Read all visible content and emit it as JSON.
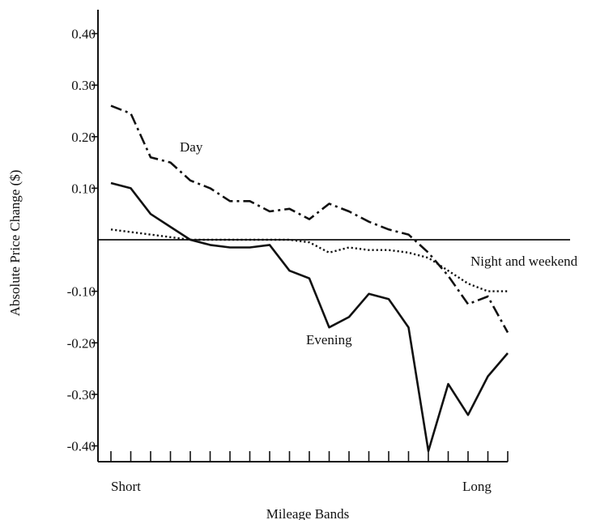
{
  "chart_data": {
    "type": "line",
    "title": "",
    "xlabel": "Mileage Bands",
    "ylabel": "Absolute Price Change ($)",
    "ylim": [
      -0.44,
      0.45
    ],
    "yticks": [
      0.4,
      0.3,
      0.2,
      0.1,
      -0.1,
      -0.2,
      -0.3,
      -0.4
    ],
    "ytick_labels": [
      "0.40",
      "0.30",
      "0.20",
      "0.10",
      "-0.10",
      "-0.20",
      "-0.30",
      "-0.40"
    ],
    "x_band_count": 20,
    "x_end_labels": {
      "start": "Short",
      "end": "Long"
    },
    "grid": false,
    "legend": "none (series labeled inline)",
    "series": [
      {
        "name": "Day",
        "style": "dash-dot",
        "x": [
          0,
          1,
          2,
          3,
          4,
          5,
          6,
          7,
          8,
          9,
          10,
          11,
          12,
          13,
          14,
          15,
          16,
          17,
          18,
          19,
          20
        ],
        "y": [
          0.26,
          0.245,
          0.16,
          0.15,
          0.115,
          0.1,
          0.075,
          0.075,
          0.055,
          0.06,
          0.04,
          0.07,
          0.055,
          0.035,
          0.02,
          0.01,
          -0.025,
          -0.07,
          -0.125,
          -0.11,
          -0.18
        ]
      },
      {
        "name": "Evening",
        "style": "solid",
        "x": [
          0,
          1,
          2,
          3,
          4,
          5,
          6,
          7,
          8,
          9,
          10,
          11,
          12,
          13,
          14,
          15,
          16,
          17,
          18,
          19,
          20
        ],
        "y": [
          0.11,
          0.1,
          0.05,
          0.025,
          0.0,
          -0.01,
          -0.015,
          -0.015,
          -0.01,
          -0.06,
          -0.075,
          -0.17,
          -0.15,
          -0.105,
          -0.115,
          -0.17,
          -0.41,
          -0.28,
          -0.34,
          -0.265,
          -0.22
        ]
      },
      {
        "name": "Night and weekend",
        "style": "dotted",
        "x": [
          0,
          1,
          2,
          3,
          4,
          5,
          6,
          7,
          8,
          9,
          10,
          11,
          12,
          13,
          14,
          15,
          16,
          17,
          18,
          19,
          20
        ],
        "y": [
          0.02,
          0.015,
          0.01,
          0.005,
          0.0,
          0.0,
          0.0,
          0.0,
          0.0,
          0.0,
          -0.005,
          -0.025,
          -0.015,
          -0.02,
          -0.02,
          -0.025,
          -0.035,
          -0.06,
          -0.085,
          -0.1,
          -0.1
        ]
      }
    ],
    "annotations": {
      "day_label": "Day",
      "evening_label": "Evening",
      "night_label": "Night and weekend"
    }
  }
}
